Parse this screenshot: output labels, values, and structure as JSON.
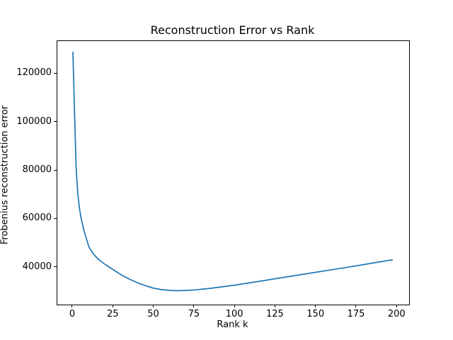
{
  "figure": {
    "background": "#ffffff"
  },
  "chart_data": {
    "type": "line",
    "title": "Reconstruction Error vs Rank",
    "xlabel": "Rank k",
    "ylabel": "Frobenius reconstruction error",
    "line_color": "#1f77b4",
    "grid": false,
    "xlim": [
      -9.6,
      207.3
    ],
    "ylim": [
      24650,
      133600
    ],
    "xticks": [
      0,
      25,
      50,
      75,
      100,
      125,
      150,
      175,
      200
    ],
    "yticks": [
      40000,
      60000,
      80000,
      100000,
      120000
    ],
    "x": [
      0,
      1,
      2,
      3,
      4,
      5,
      7,
      10,
      13,
      16,
      20,
      25,
      30,
      35,
      40,
      45,
      50,
      55,
      60,
      65,
      70,
      75,
      85,
      100,
      115,
      130,
      145,
      160,
      175,
      190,
      197
    ],
    "y": [
      129000,
      104000,
      81000,
      70500,
      64500,
      60500,
      54800,
      48300,
      45300,
      43200,
      41200,
      39000,
      36900,
      35100,
      33600,
      32400,
      31400,
      30800,
      30500,
      30400,
      30500,
      30700,
      31400,
      32700,
      34300,
      35900,
      37500,
      39100,
      40700,
      42400,
      43200
    ]
  }
}
